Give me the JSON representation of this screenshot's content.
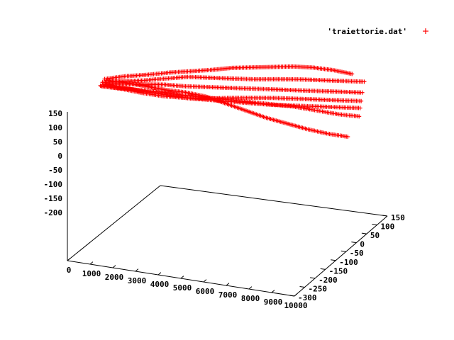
{
  "chart_data": {
    "type": "scatter",
    "title": "",
    "legend": {
      "label": "'traiettorie.dat'",
      "position": "top-right",
      "symbol": "+",
      "color": "#ff0000"
    },
    "xlabel": "",
    "ylabel": "",
    "zlabel": "",
    "x_ticks": [
      "0",
      "1000",
      "2000",
      "3000",
      "4000",
      "5000",
      "6000",
      "7000",
      "8000",
      "9000",
      "10000"
    ],
    "y_ticks": [
      "150",
      "100",
      "50",
      "0",
      "-50",
      "-100",
      "-150",
      "-200",
      "-250",
      "-300"
    ],
    "z_ticks": [
      "150",
      "100",
      "50",
      "0",
      "-50",
      "-100",
      "-150",
      "-200"
    ],
    "xlim": [
      0,
      10000
    ],
    "ylim": [
      -300,
      150
    ],
    "zlim": [
      -200,
      150
    ],
    "grid": false,
    "series": [
      {
        "color": "#ff0000",
        "marker": "+",
        "trajectories": [
          {
            "x": [
              0,
              800,
              1600,
              2400,
              3200,
              4000,
              4800,
              5600,
              6400,
              7200,
              8000,
              8800,
              9600
            ],
            "y": [
              -30,
              -45,
              -60,
              -80,
              -95,
              -110,
              -120,
              -130,
              -140,
              -150,
              -160,
              -170,
              -180
            ],
            "z": [
              70,
              80,
              85,
              90,
              95,
              100,
              110,
              115,
              120,
              125,
              125,
              120,
              110
            ]
          },
          {
            "x": [
              0,
              800,
              1600,
              2400,
              3200,
              4000,
              4800,
              5600,
              6400,
              7200,
              8000,
              8800,
              9600
            ],
            "y": [
              -20,
              -30,
              -40,
              -60,
              -80,
              -100,
              -120,
              -140,
              -160,
              -180,
              -200,
              -220,
              -240
            ],
            "z": [
              65,
              72,
              78,
              82,
              85,
              80,
              75,
              70,
              68,
              65,
              60,
              55,
              50
            ]
          },
          {
            "x": [
              0,
              800,
              1600,
              2400,
              3200,
              4000,
              4800,
              5600,
              6400,
              7200,
              8000,
              8800,
              9600
            ],
            "y": [
              -10,
              -15,
              -25,
              -40,
              -55,
              -75,
              -95,
              -115,
              -135,
              -155,
              -175,
              -195,
              -215
            ],
            "z": [
              60,
              58,
              55,
              50,
              40,
              30,
              20,
              10,
              0,
              -10,
              -25,
              -40,
              -50
            ]
          },
          {
            "x": [
              0,
              800,
              1600,
              2400,
              3200,
              4000,
              4800,
              5600,
              6400,
              7200,
              8000,
              8800,
              9600
            ],
            "y": [
              -40,
              -50,
              -55,
              -60,
              -70,
              -80,
              -90,
              -100,
              -110,
              -120,
              -130,
              -145,
              -160
            ],
            "z": [
              60,
              55,
              50,
              45,
              40,
              30,
              10,
              -10,
              -30,
              -45,
              -60,
              -75,
              -85
            ]
          },
          {
            "x": [
              0,
              800,
              1600,
              2400,
              3200,
              4000,
              4800,
              5600,
              6400,
              7200,
              8000,
              8800,
              9600
            ],
            "y": [
              -25,
              -35,
              -45,
              -55,
              -70,
              -90,
              -110,
              -130,
              -150,
              -170,
              -190,
              -210,
              -230
            ],
            "z": [
              55,
              60,
              62,
              65,
              60,
              55,
              50,
              45,
              40,
              35,
              30,
              25,
              20
            ]
          },
          {
            "x": [
              0,
              800,
              1600,
              2400,
              3200,
              4000,
              4800,
              5600,
              6400,
              7200,
              8000,
              8800,
              9600
            ],
            "y": [
              -35,
              -40,
              -50,
              -65,
              -80,
              -95,
              -110,
              -125,
              -140,
              -160,
              -180,
              -200,
              -220
            ],
            "z": [
              50,
              45,
              35,
              25,
              15,
              10,
              5,
              0,
              -5,
              -10,
              -15,
              -20,
              -25
            ]
          },
          {
            "x": [
              0,
              800,
              1600,
              2400,
              3200,
              4000,
              4800,
              5600,
              6400,
              7200,
              8000,
              8800,
              9600
            ],
            "y": [
              -15,
              -25,
              -35,
              -50,
              -65,
              -85,
              -105,
              -125,
              -145,
              -165,
              -185,
              -205,
              -225
            ],
            "z": [
              55,
              50,
              40,
              30,
              25,
              20,
              20,
              18,
              15,
              10,
              5,
              0,
              -5
            ]
          }
        ]
      }
    ]
  }
}
